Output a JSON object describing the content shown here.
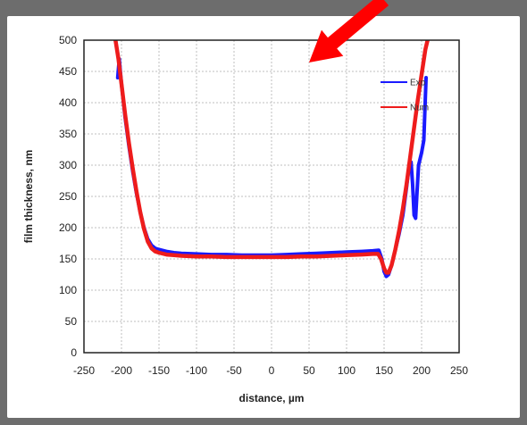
{
  "chart_data": {
    "type": "line",
    "title": "",
    "xlabel": "distance, µm",
    "ylabel": "film thickness, nm",
    "xlim": [
      -250,
      250
    ],
    "ylim": [
      0,
      500
    ],
    "xticks": [
      -250,
      -200,
      -150,
      -100,
      -50,
      0,
      50,
      100,
      150,
      200,
      250
    ],
    "yticks": [
      0,
      50,
      100,
      150,
      200,
      250,
      300,
      350,
      400,
      450,
      500
    ],
    "grid": true,
    "legend": "top-right",
    "series": [
      {
        "name": "Exp",
        "color": "#1a1aff",
        "x": [
          -205,
          -203,
          -200,
          -195,
          -190,
          -185,
          -180,
          -175,
          -170,
          -165,
          -160,
          -155,
          -150,
          -140,
          -130,
          -120,
          -100,
          -80,
          -60,
          -40,
          -20,
          0,
          20,
          40,
          60,
          80,
          100,
          120,
          135,
          143,
          147,
          150,
          153,
          156,
          160,
          165,
          170,
          175,
          180,
          183,
          186,
          188,
          190,
          192,
          194,
          196,
          200,
          203,
          206
        ],
        "y": [
          440,
          470,
          430,
          375,
          330,
          290,
          255,
          225,
          200,
          182,
          172,
          167,
          165,
          162,
          160,
          159,
          158,
          157,
          157,
          156,
          156,
          156,
          157,
          158,
          159,
          160,
          161,
          162,
          163,
          164,
          150,
          130,
          122,
          125,
          140,
          165,
          190,
          220,
          265,
          295,
          305,
          270,
          220,
          215,
          260,
          300,
          320,
          340,
          440
        ]
      },
      {
        "name": "Num",
        "color": "#ee1c1c",
        "x": [
          -208,
          -204,
          -200,
          -195,
          -190,
          -185,
          -180,
          -175,
          -170,
          -165,
          -160,
          -155,
          -150,
          -140,
          -130,
          -120,
          -100,
          -80,
          -60,
          -40,
          -20,
          0,
          20,
          40,
          60,
          80,
          100,
          120,
          135,
          142,
          146,
          150,
          153,
          156,
          160,
          165,
          170,
          175,
          180,
          185,
          190,
          195,
          200,
          205,
          208
        ],
        "y": [
          500,
          470,
          430,
          380,
          335,
          295,
          258,
          225,
          198,
          178,
          167,
          162,
          160,
          157,
          156,
          155,
          154,
          154,
          153,
          153,
          153,
          153,
          153,
          154,
          154,
          155,
          156,
          157,
          158,
          158,
          150,
          135,
          128,
          128,
          140,
          165,
          195,
          230,
          270,
          315,
          360,
          405,
          445,
          485,
          500
        ]
      }
    ],
    "annotations": [
      {
        "type": "arrow",
        "color": "#ff0000"
      }
    ]
  }
}
